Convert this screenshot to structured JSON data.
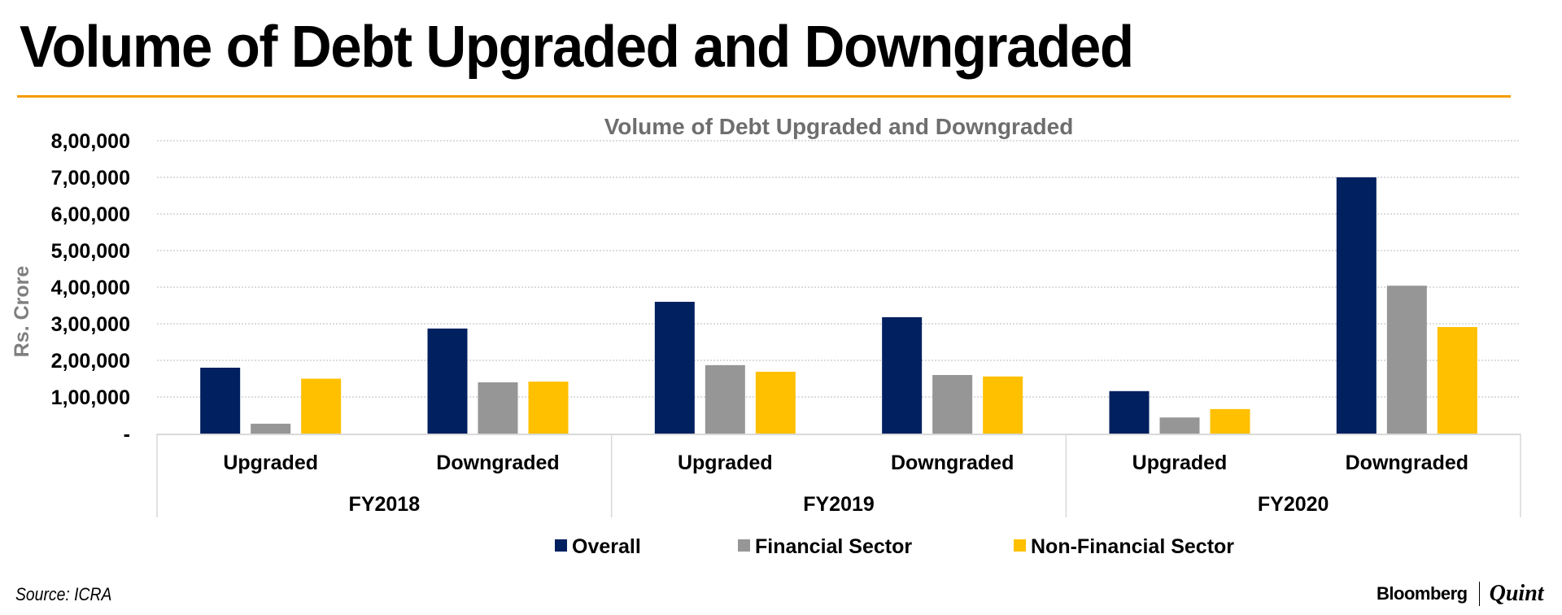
{
  "header": {
    "title": "Volume of Debt Upgraded and Downgraded"
  },
  "footer": {
    "source": "Source: ICRA",
    "logo_left": "Bloomberg",
    "logo_right": "Quint"
  },
  "chart_data": {
    "type": "bar",
    "title": "Volume of Debt Upgraded and Downgraded",
    "xlabel": "",
    "ylabel": "Rs. Crore",
    "ylim": [
      0,
      800000
    ],
    "yticks": [
      0,
      100000,
      200000,
      300000,
      400000,
      500000,
      600000,
      700000,
      800000
    ],
    "ytick_labels": [
      "-",
      "1,00,000",
      "2,00,000",
      "3,00,000",
      "4,00,000",
      "5,00,000",
      "6,00,000",
      "7,00,000",
      "8,00,000"
    ],
    "grid": true,
    "legend_position": "bottom",
    "groups": [
      "FY2018",
      "FY2019",
      "FY2020"
    ],
    "categories": [
      "Upgraded",
      "Downgraded",
      "Upgraded",
      "Downgraded",
      "Upgraded",
      "Downgraded"
    ],
    "category_groups": [
      "FY2018",
      "FY2018",
      "FY2019",
      "FY2019",
      "FY2020",
      "FY2020"
    ],
    "series": [
      {
        "name": "Overall",
        "color": "#002060",
        "values": [
          180000,
          287000,
          360000,
          318000,
          116000,
          700000
        ]
      },
      {
        "name": "Financial Sector",
        "color": "#969696",
        "values": [
          27000,
          140000,
          187000,
          160000,
          44000,
          404000
        ]
      },
      {
        "name": "Non-Financial Sector",
        "color": "#FFC000",
        "values": [
          150000,
          142000,
          169000,
          156000,
          67000,
          291000
        ]
      }
    ]
  }
}
